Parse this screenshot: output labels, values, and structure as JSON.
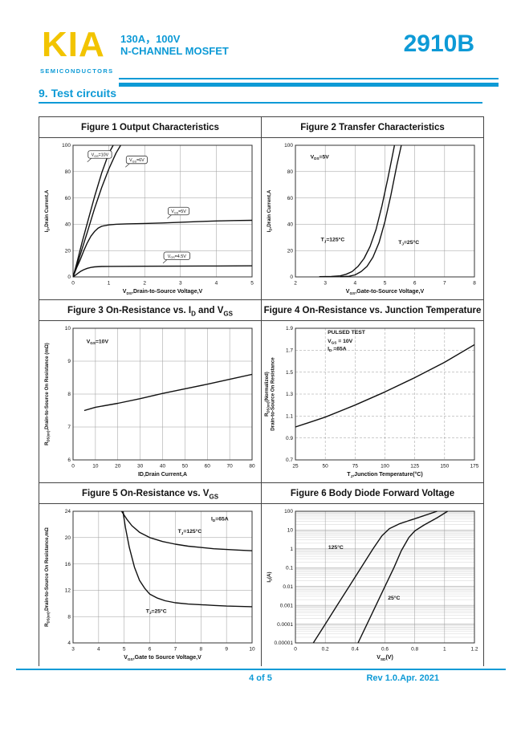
{
  "header": {
    "logo_text": "KIA",
    "logo_subtext": "SEMICONDUCTORS",
    "rating": "130A，100V",
    "device_type": "N-CHANNEL MOSFET",
    "part_number": "2910B",
    "accent_color": "#0d9ad6",
    "logo_color": "#f2c400"
  },
  "section_heading": "9.  Test circuits",
  "footer": {
    "page_number": "4 of 5",
    "revision": "Rev 1.0.Apr. 2021"
  },
  "chart_data": [
    {
      "type": "line",
      "title": "Figure 1 Output Characteristics",
      "xlabel": "V_{DS},Drain-to-Source Voltage,V",
      "ylabel": "I_{D},Drain Current,A",
      "xlim": [
        0,
        5
      ],
      "xticks": [
        0,
        1,
        2,
        3,
        4,
        5
      ],
      "ylim": [
        0,
        100
      ],
      "yticks": [
        0,
        20,
        40,
        60,
        80,
        100
      ],
      "grid": true,
      "legend_position": "none",
      "series": [
        {
          "name": "VGS=10V",
          "points": [
            [
              0,
              0
            ],
            [
              0.1,
              10
            ],
            [
              0.25,
              26
            ],
            [
              0.4,
              41
            ],
            [
              0.6,
              61
            ],
            [
              0.8,
              79
            ],
            [
              1.0,
              94
            ],
            [
              1.12,
              100
            ]
          ]
        },
        {
          "name": "VGS=6V",
          "points": [
            [
              0,
              0
            ],
            [
              0.1,
              8
            ],
            [
              0.25,
              21
            ],
            [
              0.4,
              34
            ],
            [
              0.6,
              52
            ],
            [
              0.8,
              68
            ],
            [
              1.0,
              82
            ],
            [
              1.2,
              94
            ],
            [
              1.33,
              100
            ]
          ]
        },
        {
          "name": "VGS=5V",
          "points": [
            [
              0,
              0
            ],
            [
              0.1,
              7
            ],
            [
              0.2,
              13
            ],
            [
              0.3,
              20
            ],
            [
              0.4,
              26
            ],
            [
              0.5,
              31
            ],
            [
              0.6,
              34.5
            ],
            [
              0.7,
              37
            ],
            [
              0.8,
              38.5
            ],
            [
              1.0,
              39.5
            ],
            [
              1.2,
              40
            ],
            [
              1.5,
              40.3
            ],
            [
              2,
              40.6
            ],
            [
              2.5,
              41
            ],
            [
              3,
              41.5
            ],
            [
              3.5,
              42
            ],
            [
              4,
              42.5
            ],
            [
              4.5,
              42.8
            ],
            [
              5,
              43
            ]
          ]
        },
        {
          "name": "VGS=4.5V",
          "points": [
            [
              0,
              0
            ],
            [
              0.1,
              2
            ],
            [
              0.2,
              4
            ],
            [
              0.3,
              5.5
            ],
            [
              0.4,
              6.5
            ],
            [
              0.5,
              7.2
            ],
            [
              0.6,
              7.6
            ],
            [
              0.8,
              7.9
            ],
            [
              1,
              8
            ],
            [
              2,
              8.1
            ],
            [
              3,
              8.2
            ],
            [
              4,
              8.3
            ],
            [
              5,
              8.4
            ]
          ]
        }
      ],
      "annotations": [
        {
          "text": "V_{GS}=10V",
          "x": 0.75,
          "y": 93,
          "box": true
        },
        {
          "text": "V_{GS}=6V",
          "x": 1.78,
          "y": 89,
          "box": true
        },
        {
          "text": "V_{GS}=5V",
          "x": 2.95,
          "y": 50,
          "box": true
        },
        {
          "text": "V_{GS}=4.5V",
          "x": 2.9,
          "y": 16,
          "box": true
        }
      ]
    },
    {
      "type": "line",
      "title": "Figure 2 Transfer Characteristics",
      "xlabel": "V_{GS},Gate-to-Source Voltage,V",
      "ylabel": "I_{D},Drain Current,A",
      "xlim": [
        2,
        8
      ],
      "xticks": [
        2,
        3,
        4,
        5,
        6,
        7,
        8
      ],
      "ylim": [
        0,
        100
      ],
      "yticks": [
        0,
        20,
        40,
        60,
        80,
        100
      ],
      "grid": true,
      "legend_position": "none",
      "series": [
        {
          "name": "TJ=125°C",
          "points": [
            [
              2.8,
              0.2
            ],
            [
              3.2,
              0.3
            ],
            [
              3.5,
              0.8
            ],
            [
              3.7,
              2
            ],
            [
              3.9,
              4
            ],
            [
              4.1,
              8
            ],
            [
              4.3,
              14
            ],
            [
              4.5,
              23
            ],
            [
              4.7,
              36
            ],
            [
              4.9,
              54
            ],
            [
              5.1,
              75
            ],
            [
              5.25,
              92
            ],
            [
              5.32,
              100
            ]
          ]
        },
        {
          "name": "TJ=25°C",
          "points": [
            [
              3.5,
              0.2
            ],
            [
              3.8,
              0.5
            ],
            [
              4.0,
              1.5
            ],
            [
              4.2,
              4
            ],
            [
              4.4,
              8
            ],
            [
              4.6,
              15
            ],
            [
              4.8,
              26
            ],
            [
              5.0,
              42
            ],
            [
              5.2,
              62
            ],
            [
              5.4,
              85
            ],
            [
              5.55,
              100
            ]
          ]
        }
      ],
      "annotations": [
        {
          "text": "V_{DS}=5V",
          "x": 2.5,
          "y": 90
        },
        {
          "text": "T_{J}=125°C",
          "x": 2.85,
          "y": 27
        },
        {
          "text": "T_{J}=25°C",
          "x": 5.45,
          "y": 25
        }
      ]
    },
    {
      "type": "line",
      "title": "Figure 3 On-Resistance vs. I_{D} and V_{GS}",
      "xlabel": "ID,Drain Current,A",
      "ylabel": "R_{DS(on)},Drain-to-Source On Resistance (mΩ)",
      "xlim": [
        0,
        80
      ],
      "xticks": [
        0,
        10,
        20,
        30,
        40,
        50,
        60,
        70,
        80
      ],
      "ylim": [
        6,
        10
      ],
      "yticks": [
        6,
        7,
        8,
        9,
        10
      ],
      "grid": true,
      "legend_position": "none",
      "series": [
        {
          "name": "VGS=10V",
          "points": [
            [
              5,
              7.5
            ],
            [
              10,
              7.6
            ],
            [
              20,
              7.72
            ],
            [
              30,
              7.86
            ],
            [
              40,
              8.02
            ],
            [
              50,
              8.16
            ],
            [
              60,
              8.3
            ],
            [
              70,
              8.45
            ],
            [
              80,
              8.6
            ]
          ]
        }
      ],
      "annotations": [
        {
          "text": "V_{GS}=10V",
          "x": 6,
          "y": 9.55
        }
      ]
    },
    {
      "type": "line",
      "title": "Figure 4 On-Resistance vs. Junction Temperature",
      "xlabel": "T_{J},Junction Temperature(°C)",
      "ylabel": "R_{DS(on)}(Normalized)",
      "ylabel2": "Drain-to-Source On Resistance",
      "xlim": [
        25,
        175
      ],
      "xticks": [
        25,
        50,
        75,
        100,
        125,
        150,
        175
      ],
      "ylim": [
        0.7,
        1.9
      ],
      "yticks": [
        0.7,
        0.9,
        1.1,
        1.3,
        1.5,
        1.7,
        1.9
      ],
      "grid": true,
      "grid_dash": true,
      "legend_position": "none",
      "series": [
        {
          "name": "RDS(on) normalized",
          "points": [
            [
              25,
              1.0
            ],
            [
              50,
              1.09
            ],
            [
              75,
              1.2
            ],
            [
              100,
              1.32
            ],
            [
              125,
              1.45
            ],
            [
              150,
              1.59
            ],
            [
              175,
              1.75
            ]
          ]
        }
      ],
      "annotations": [
        {
          "text": "PULSED TEST",
          "x": 52,
          "y": 1.85
        },
        {
          "text": "V_{GS} = 10V",
          "x": 52,
          "y": 1.77
        },
        {
          "text": "I_{D} =65A",
          "x": 52,
          "y": 1.7
        }
      ]
    },
    {
      "type": "line",
      "title": "Figure 5 On-Resistance vs. V_{GS}",
      "xlabel": "V_{GS},Gate to Source Voltage,V",
      "ylabel": "R_{DS(on)},Drain-to-Source On Resistance,mΩ",
      "xlim": [
        3,
        10
      ],
      "xticks": [
        3,
        4,
        5,
        6,
        7,
        8,
        9,
        10
      ],
      "ylim": [
        4,
        24
      ],
      "yticks": [
        4,
        8,
        12,
        16,
        20,
        24
      ],
      "grid": true,
      "legend_position": "none",
      "series": [
        {
          "name": "TJ=125°C",
          "points": [
            [
              4.9,
              24
            ],
            [
              5.1,
              22.8
            ],
            [
              5.3,
              21.8
            ],
            [
              5.6,
              20.8
            ],
            [
              6,
              20
            ],
            [
              6.5,
              19.4
            ],
            [
              7,
              19
            ],
            [
              7.5,
              18.7
            ],
            [
              8,
              18.5
            ],
            [
              8.5,
              18.3
            ],
            [
              9,
              18.2
            ],
            [
              9.5,
              18.1
            ],
            [
              10,
              18
            ]
          ]
        },
        {
          "name": "TJ=25°C",
          "points": [
            [
              4.95,
              24
            ],
            [
              5.05,
              21.5
            ],
            [
              5.2,
              18.5
            ],
            [
              5.4,
              15.5
            ],
            [
              5.6,
              13.5
            ],
            [
              5.8,
              12.3
            ],
            [
              6,
              11.4
            ],
            [
              6.3,
              10.8
            ],
            [
              6.6,
              10.4
            ],
            [
              7,
              10.1
            ],
            [
              7.5,
              9.9
            ],
            [
              8,
              9.8
            ],
            [
              8.5,
              9.7
            ],
            [
              9,
              9.6
            ],
            [
              10,
              9.5
            ]
          ]
        }
      ],
      "annotations": [
        {
          "text": "I_{D}=65A",
          "x": 8.4,
          "y": 22.6
        },
        {
          "text": "T_{J}=125°C",
          "x": 7.1,
          "y": 20.7
        },
        {
          "text": "T_{J}=25°C",
          "x": 5.85,
          "y": 8.6
        }
      ]
    },
    {
      "type": "line",
      "title": "Figure 6 Body Diode Forward Voltage",
      "xlabel": "V_{SD}(V)",
      "ylabel": "I_{S}(A)",
      "xlim": [
        0,
        1.2
      ],
      "xticks": [
        0,
        0.2,
        0.4,
        0.6,
        0.8,
        1,
        1.2
      ],
      "xticklabels": [
        "0",
        "0.2",
        "0.4",
        "0.6",
        "0.8",
        "1",
        "1.2"
      ],
      "yscale": "log",
      "ylim": [
        1e-05,
        100
      ],
      "yticks": [
        100,
        10,
        1,
        0.1,
        0.01,
        0.001,
        0.0001,
        1e-05
      ],
      "yticklabels": [
        "100",
        "10",
        "1",
        "0.1",
        "0.01",
        "0.001",
        "0.0001",
        "0.00001"
      ],
      "grid": true,
      "legend_position": "none",
      "series": [
        {
          "name": "125°C",
          "points": [
            [
              0.12,
              1e-05
            ],
            [
              0.2,
              0.0001
            ],
            [
              0.28,
              0.001
            ],
            [
              0.36,
              0.01
            ],
            [
              0.44,
              0.1
            ],
            [
              0.52,
              1
            ],
            [
              0.58,
              5
            ],
            [
              0.63,
              12
            ],
            [
              0.7,
              22
            ],
            [
              0.8,
              40
            ],
            [
              0.95,
              100
            ]
          ]
        },
        {
          "name": "25°C",
          "points": [
            [
              0.42,
              1e-05
            ],
            [
              0.48,
              0.0001
            ],
            [
              0.54,
              0.001
            ],
            [
              0.6,
              0.01
            ],
            [
              0.66,
              0.1
            ],
            [
              0.71,
              0.8
            ],
            [
              0.76,
              4
            ],
            [
              0.8,
              9
            ],
            [
              0.86,
              18
            ],
            [
              0.95,
              45
            ],
            [
              1.02,
              100
            ]
          ]
        }
      ],
      "annotations": [
        {
          "text": "125°C",
          "x": 0.22,
          "y": 1
        },
        {
          "text": "25°C",
          "x": 0.62,
          "y": 0.002
        }
      ]
    }
  ]
}
